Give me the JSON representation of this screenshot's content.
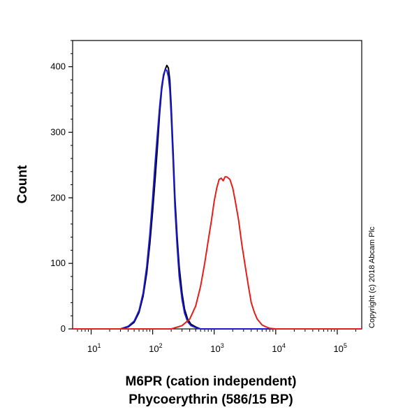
{
  "chart_data": {
    "type": "line",
    "title": "",
    "xlabel_lines": [
      "M6PR (cation independent)",
      "Phycoerythrin (586/15 BP)"
    ],
    "ylabel": "Count",
    "x_scale": "log",
    "xlim": [
      5,
      250000
    ],
    "ylim": [
      0,
      440
    ],
    "y_ticks": [
      0,
      100,
      200,
      300,
      400
    ],
    "x_ticks": [
      {
        "value": 10,
        "base": "10",
        "exp": "1"
      },
      {
        "value": 100,
        "base": "10",
        "exp": "2"
      },
      {
        "value": 1000,
        "base": "10",
        "exp": "3"
      },
      {
        "value": 10000,
        "base": "10",
        "exp": "4"
      },
      {
        "value": 100000,
        "base": "10",
        "exp": "5"
      }
    ],
    "grid": false,
    "legend": "none",
    "annotation": "Copyright (c) 2018 Abcam Plc",
    "series": [
      {
        "color": "#000000",
        "x": [
          5,
          30,
          40,
          50,
          60,
          70,
          80,
          90,
          100,
          110,
          120,
          130,
          140,
          150,
          160,
          170,
          180,
          190,
          200,
          215,
          230,
          250,
          270,
          300,
          330,
          370,
          420,
          500,
          600,
          1000,
          250000
        ],
        "y": [
          0,
          0,
          3,
          10,
          25,
          50,
          85,
          130,
          180,
          230,
          280,
          330,
          365,
          385,
          396,
          402,
          398,
          380,
          340,
          270,
          200,
          140,
          95,
          55,
          30,
          15,
          7,
          3,
          0,
          0,
          0
        ]
      },
      {
        "color": "#1a1ad6",
        "x": [
          5,
          30,
          40,
          50,
          60,
          70,
          80,
          90,
          100,
          110,
          120,
          130,
          140,
          150,
          160,
          170,
          180,
          190,
          200,
          215,
          230,
          250,
          270,
          300,
          330,
          370,
          420,
          500,
          600,
          1000,
          250000
        ],
        "y": [
          0,
          0,
          4,
          12,
          28,
          55,
          95,
          145,
          200,
          255,
          300,
          340,
          370,
          388,
          396,
          394,
          385,
          365,
          325,
          255,
          185,
          125,
          80,
          45,
          24,
          11,
          5,
          2,
          0,
          0,
          0
        ]
      },
      {
        "color": "#e0201c",
        "x": [
          5,
          200,
          300,
          400,
          500,
          600,
          700,
          800,
          900,
          1000,
          1100,
          1200,
          1300,
          1400,
          1500,
          1600,
          1700,
          1800,
          2000,
          2200,
          2500,
          2800,
          3200,
          3600,
          4000,
          4500,
          5000,
          6000,
          7000,
          8000,
          10000,
          250000
        ],
        "y": [
          0,
          0,
          5,
          15,
          35,
          65,
          100,
          135,
          165,
          195,
          215,
          228,
          230,
          226,
          232,
          232,
          230,
          228,
          215,
          195,
          165,
          130,
          95,
          65,
          40,
          25,
          15,
          6,
          3,
          1,
          0,
          0
        ]
      }
    ]
  }
}
